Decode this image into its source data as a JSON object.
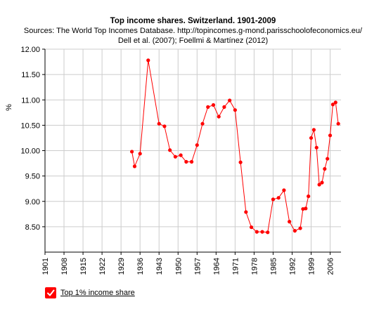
{
  "title": "Top income shares. Switzerland. 1901-2009",
  "subtitle_lines": [
    "Sources: The World Top Incomes Database. http://topincomes.g-mond.parisschoolofeconomics.eu/",
    "Dell et al. (2007); Foellmi & Martínez (2012)"
  ],
  "legend": {
    "label": "Top 1% income share",
    "checked": true,
    "color": "#ff0000"
  },
  "chart_data": {
    "type": "line",
    "title": "Top income shares. Switzerland. 1901-2009",
    "xlabel": "",
    "ylabel": "%",
    "xlim": [
      1901,
      2010
    ],
    "ylim": [
      8.0,
      12.0
    ],
    "x_ticks": [
      1901,
      1908,
      1915,
      1922,
      1929,
      1936,
      1943,
      1950,
      1957,
      1964,
      1971,
      1978,
      1985,
      1992,
      1999,
      2006
    ],
    "y_ticks": [
      8.5,
      9.0,
      9.5,
      10.0,
      10.5,
      11.0,
      11.5,
      12.0
    ],
    "y_tick_labels": [
      "8.50",
      "9.00",
      "9.50",
      "10.00",
      "10.50",
      "11.00",
      "11.50",
      "12.00"
    ],
    "grid": true,
    "legend_position": "bottom-left",
    "series": [
      {
        "name": "Top 1% income share",
        "color": "#ff0000",
        "points": [
          [
            1933,
            9.98
          ],
          [
            1934,
            9.69
          ],
          [
            1936,
            9.94
          ],
          [
            1939,
            11.78
          ],
          [
            1943,
            10.53
          ],
          [
            1945,
            10.48
          ],
          [
            1947,
            10.01
          ],
          [
            1949,
            9.88
          ],
          [
            1951,
            9.91
          ],
          [
            1953,
            9.78
          ],
          [
            1955,
            9.78
          ],
          [
            1957,
            10.11
          ],
          [
            1959,
            10.53
          ],
          [
            1961,
            10.86
          ],
          [
            1963,
            10.9
          ],
          [
            1965,
            10.67
          ],
          [
            1967,
            10.86
          ],
          [
            1969,
            10.99
          ],
          [
            1971,
            10.8
          ],
          [
            1973,
            9.77
          ],
          [
            1975,
            8.79
          ],
          [
            1977,
            8.49
          ],
          [
            1979,
            8.4
          ],
          [
            1981,
            8.4
          ],
          [
            1983,
            8.39
          ],
          [
            1985,
            9.04
          ],
          [
            1987,
            9.07
          ],
          [
            1989,
            9.22
          ],
          [
            1991,
            8.6
          ],
          [
            1993,
            8.42
          ],
          [
            1995,
            8.47
          ],
          [
            1996,
            8.85
          ],
          [
            1997,
            8.86
          ],
          [
            1998,
            9.1
          ],
          [
            1999,
            10.25
          ],
          [
            2000,
            10.41
          ],
          [
            2001,
            10.06
          ],
          [
            2002,
            9.33
          ],
          [
            2003,
            9.37
          ],
          [
            2004,
            9.64
          ],
          [
            2005,
            9.84
          ],
          [
            2006,
            10.3
          ],
          [
            2007,
            10.91
          ],
          [
            2008,
            10.95
          ],
          [
            2009,
            10.53
          ]
        ]
      }
    ]
  }
}
